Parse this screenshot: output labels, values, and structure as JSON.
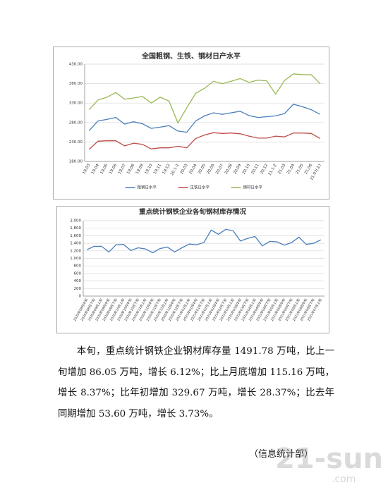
{
  "chart_data": [
    {
      "type": "line",
      "title": "全国粗钢、生铁、钢材日产水平",
      "categories": [
        "19.03",
        "19.04",
        "19.05",
        "19.06",
        "19.07",
        "19.08",
        "19.09",
        "19.10",
        "19.11",
        "19.12",
        "20.1-2",
        "20.03",
        "20.04",
        "20.05",
        "20.06",
        "20.07",
        "20.08",
        "20.09",
        "20.10",
        "20.11",
        "20.12",
        "21.1-2",
        "21.03",
        "21.04",
        "21.05",
        "21.06",
        "21.07(上)"
      ],
      "series": [
        {
          "name": "粗钢日水平",
          "color": "#4a7ebb",
          "values": [
            259,
            284,
            288,
            293,
            276,
            282,
            277,
            265,
            268,
            272,
            258,
            255,
            284,
            297,
            305,
            301,
            305,
            309,
            298,
            293,
            295,
            297,
            303,
            327,
            321,
            313,
            301
          ]
        },
        {
          "name": "生铁日水平",
          "color": "#be4b48",
          "values": [
            211,
            232,
            233,
            233,
            220,
            227,
            224,
            212,
            215,
            215,
            219,
            215,
            239,
            248,
            254,
            252,
            253,
            251,
            245,
            240,
            240,
            245,
            243,
            253,
            253,
            252,
            239
          ]
        },
        {
          "name": "钢材日水平",
          "color": "#98b954",
          "values": [
            313,
            338,
            345,
            357,
            340,
            343,
            347,
            330,
            345,
            335,
            279,
            318,
            355,
            368,
            386,
            380,
            386,
            393,
            383,
            389,
            387,
            353,
            388,
            405,
            403,
            403,
            380
          ]
        }
      ],
      "ylim": [
        180,
        430
      ],
      "yticks": [
        {
          "value": 180,
          "label": "180.00"
        },
        {
          "value": 230,
          "label": "230.00"
        },
        {
          "value": 280,
          "label": "280.00"
        },
        {
          "value": 330,
          "label": "330.00"
        },
        {
          "value": 380,
          "label": "380.00"
        },
        {
          "value": 430,
          "label": "430.00"
        }
      ],
      "grid": true,
      "legend": "bottom"
    },
    {
      "type": "line",
      "title": "重点统计钢铁企业各旬钢材库存情况",
      "categories": [
        "2020年08月中旬",
        "2020年08月下旬",
        "2020年09月上旬",
        "2020年09月中旬",
        "2020年09月下旬",
        "2020年10月上旬",
        "2020年10月中旬",
        "2020年10月下旬",
        "2020年11月上旬",
        "2020年11月中旬",
        "2020年11月下旬",
        "2020年12月上旬",
        "2020年12月中旬",
        "2020年12月下旬",
        "2021年01月上旬",
        "2021年01月中旬",
        "2021年01月下旬",
        "2021年02月上旬",
        "2021年02月中旬",
        "2021年02月下旬",
        "2021年03月上旬",
        "2021年03月中旬",
        "2021年03月下旬",
        "2021年04月上旬",
        "2021年04月中旬",
        "2021年04月下旬",
        "2021年05月上旬",
        "2021年05月中旬",
        "2021年05月下旬",
        "2021年06月上旬",
        "2021年06月中旬",
        "2021年06月下旬",
        "2021年07月上旬"
      ],
      "values": [
        1230,
        1320,
        1320,
        1170,
        1360,
        1370,
        1210,
        1280,
        1250,
        1150,
        1260,
        1300,
        1170,
        1280,
        1380,
        1360,
        1420,
        1750,
        1640,
        1770,
        1730,
        1460,
        1530,
        1580,
        1330,
        1450,
        1440,
        1350,
        1420,
        1560,
        1370,
        1400,
        1491.78
      ],
      "color": "#4a7ebb",
      "ylim": [
        0,
        2000
      ],
      "yticks": [
        0,
        200,
        400,
        600,
        800,
        {
          "value": 1000,
          "label": "1,000"
        },
        {
          "value": 1200,
          "label": "1,200"
        },
        {
          "value": 1400,
          "label": "1,400"
        },
        {
          "value": 1600,
          "label": "1,600"
        },
        {
          "value": 1800,
          "label": "1,800"
        },
        {
          "value": 2000,
          "label": "2,000"
        }
      ],
      "grid": true
    }
  ],
  "document": {
    "paragraph": "本旬，重点统计钢铁企业钢材库存量 1491.78 万吨，比上一旬增加 86.05 万吨，增长 6.12%；比上月底增加 115.16 万吨，增长 8.37%；比年初增加 329.67 万吨，增长 28.37%；比去年同期增加 53.60 万吨，增长 3.73%。",
    "signature": "（信息统计部）",
    "watermark": "21-sun",
    "watermark_sub": ".com"
  }
}
